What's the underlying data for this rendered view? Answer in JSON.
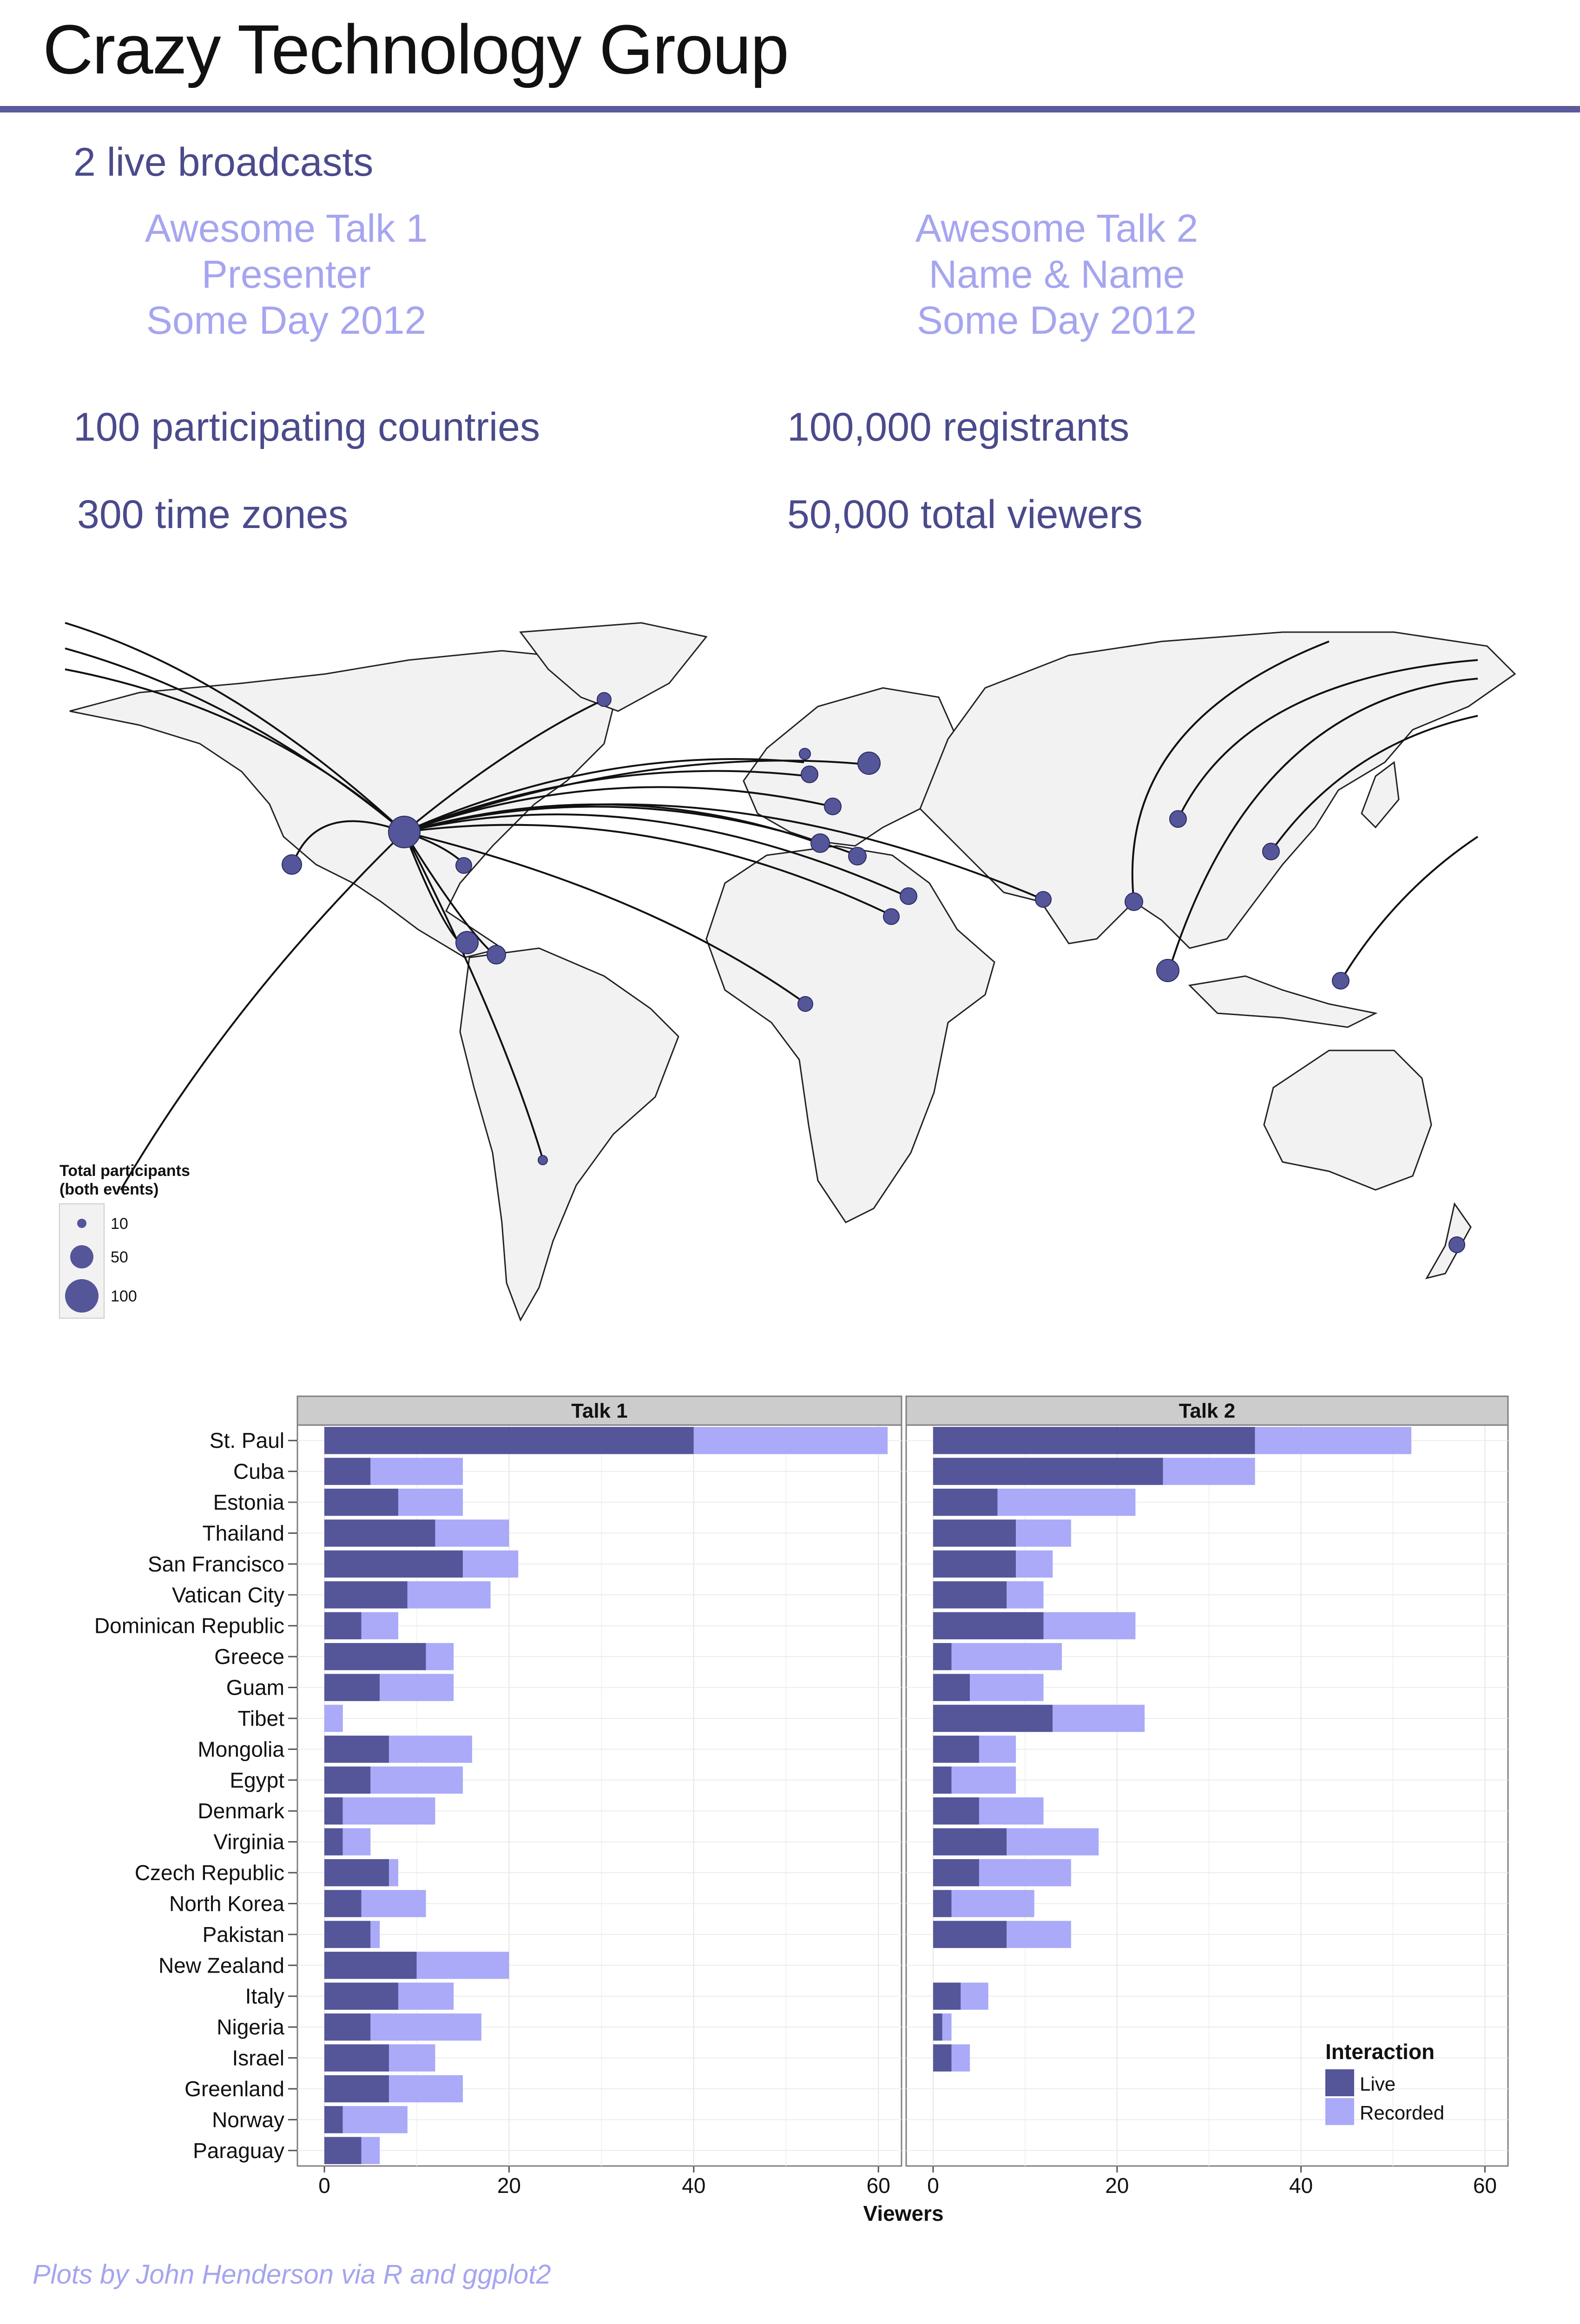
{
  "header": {
    "title": "Crazy Technology Group",
    "broadcasts": "2 live broadcasts",
    "talks": [
      {
        "title": "Awesome Talk 1",
        "presenter": "Presenter",
        "date": "Some Day 2012"
      },
      {
        "title": "Awesome Talk 2",
        "presenter": "Name & Name",
        "date": "Some Day 2012"
      }
    ],
    "stats": {
      "countries": "100 participating countries",
      "registrants": "100,000 registrants",
      "timezones": "300  time zones",
      "viewers": "50,000 total viewers"
    }
  },
  "map_legend": {
    "title_line1": "Total participants",
    "title_line2": "(both events)",
    "sizes": [
      "10",
      "50",
      "100"
    ]
  },
  "colors": {
    "live": "#55559a",
    "recorded": "#aaaaf8",
    "accent": "#5a5a9c",
    "land": "#f2f2f2"
  },
  "chart_data": {
    "type": "bar",
    "orientation": "horizontal",
    "stacked": true,
    "xlabel": "Viewers",
    "xlim": [
      0,
      62
    ],
    "xticks": [
      0,
      20,
      40,
      60
    ],
    "legend": {
      "title": "Interaction",
      "position": "bottom-right",
      "items": [
        "Live",
        "Recorded"
      ]
    },
    "categories": [
      "St. Paul",
      "Cuba",
      "Estonia",
      "Thailand",
      "San Francisco",
      "Vatican City",
      "Dominican Republic",
      "Greece",
      "Guam",
      "Tibet",
      "Mongolia",
      "Egypt",
      "Denmark",
      "Virginia",
      "Czech Republic",
      "North Korea",
      "Pakistan",
      "New Zealand",
      "Italy",
      "Nigeria",
      "Israel",
      "Greenland",
      "Norway",
      "Paraguay"
    ],
    "panels": [
      {
        "name": "Talk 1",
        "live": [
          40,
          5,
          8,
          12,
          15,
          9,
          4,
          11,
          6,
          0,
          7,
          5,
          2,
          2,
          7,
          4,
          5,
          10,
          8,
          5,
          7,
          7,
          2,
          4
        ],
        "recorded": [
          21,
          10,
          7,
          8,
          6,
          9,
          4,
          3,
          8,
          2,
          9,
          10,
          10,
          3,
          1,
          7,
          1,
          10,
          6,
          12,
          5,
          8,
          7,
          2
        ]
      },
      {
        "name": "Talk 2",
        "live": [
          35,
          25,
          7,
          9,
          9,
          8,
          12,
          2,
          4,
          13,
          5,
          2,
          5,
          8,
          5,
          2,
          8,
          0,
          3,
          1,
          2,
          0,
          0,
          0
        ],
        "recorded": [
          17,
          10,
          15,
          6,
          4,
          4,
          10,
          12,
          8,
          10,
          4,
          7,
          7,
          10,
          10,
          9,
          7,
          0,
          3,
          1,
          2,
          0,
          0,
          0
        ]
      }
    ]
  }
}
